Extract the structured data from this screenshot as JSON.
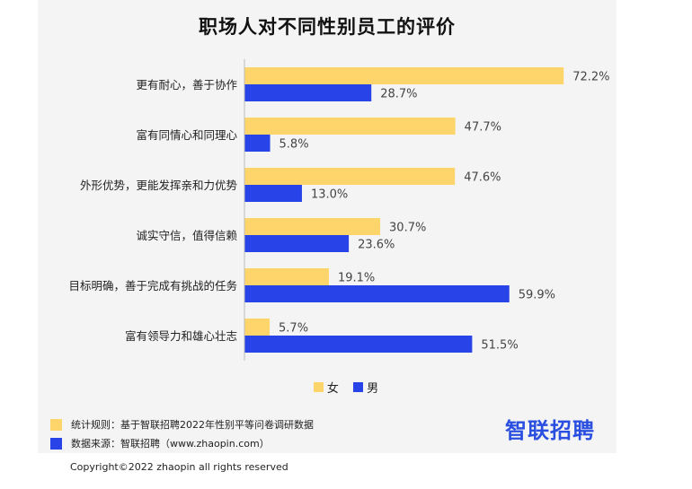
{
  "title": "职场人对不同性别员工的评价",
  "colors": {
    "female": "#fdd56b",
    "male": "#2844e8",
    "axis": "#bbbbbb"
  },
  "chart_data": {
    "type": "bar",
    "orientation": "horizontal",
    "categories": [
      "更有耐心，善于协作",
      "富有同情心和同理心",
      "外形优势，更能发挥亲和力优势",
      "诚实守信，值得信赖",
      "目标明确，善于完成有挑战的任务",
      "富有领导力和雄心壮志"
    ],
    "series": [
      {
        "name": "女",
        "values": [
          72.2,
          47.7,
          47.6,
          30.7,
          19.1,
          5.7
        ]
      },
      {
        "name": "男",
        "values": [
          28.7,
          5.8,
          13.0,
          23.6,
          59.9,
          51.5
        ]
      }
    ],
    "value_suffix": "%",
    "xlim": [
      0,
      100
    ],
    "grid": false,
    "legend_position": "bottom"
  },
  "legend": {
    "female": "女",
    "male": "男"
  },
  "footer": {
    "stats_rule": "统计规则：基于智联招聘2022年性别平等问卷调研数据",
    "data_source": "数据来源：智联招聘（www.zhaopin.com）",
    "logo_text": "智联招聘",
    "copyright": "Copyright©2022 zhaopin all rights reserved"
  }
}
